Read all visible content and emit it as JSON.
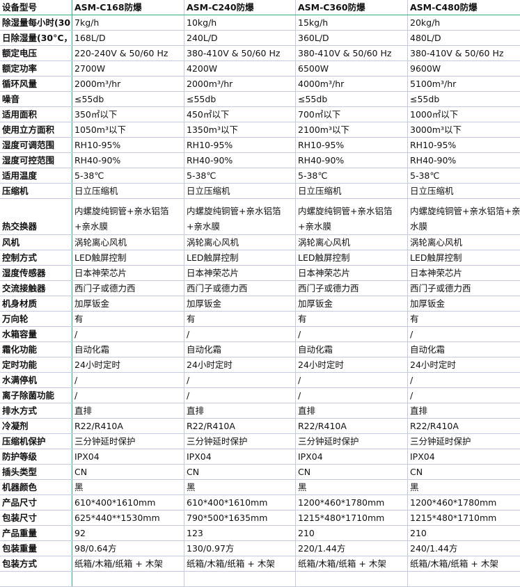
{
  "table": {
    "header": [
      "设备型号",
      "ASM-C168防爆",
      "ASM-C240防爆",
      "ASM-C360防爆",
      "ASM-C480防爆"
    ],
    "rows": [
      [
        "除湿量每小时(30",
        "7kg/h",
        "10kg/h",
        "15kg/h",
        "20kg/h"
      ],
      [
        "日除湿量(30°C，",
        "168L/D",
        "240L/D",
        "360L/D",
        "480L/D"
      ],
      [
        "额定电压",
        "220-240V & 50/60 Hz",
        "380-410V & 50/60 Hz",
        "380-410V & 50/60 Hz",
        "380-410V & 50/60 Hz"
      ],
      [
        "额定功率",
        "2700W",
        "4200W",
        "6500W",
        "9600W"
      ],
      [
        "循环风量",
        "2000m³/hr",
        "2000m³/hr",
        "4000m³/hr",
        "5100m³/hr"
      ],
      [
        "噪音",
        "≤55db",
        "≤55db",
        "≤55db",
        "≤55db"
      ],
      [
        "适用面积",
        "350㎡以下",
        "450㎡以下",
        "700㎡以下",
        "1000㎡以下"
      ],
      [
        "使用立方面积",
        "1050m³以下",
        "1350m³以下",
        "2100m³以下",
        "3000m³以下"
      ],
      [
        "湿度可调范围",
        "RH10-95%",
        "RH10-95%",
        "RH10-95%",
        "RH10-95%"
      ],
      [
        "湿度可控范围",
        "RH40-90%",
        "RH40-90%",
        "RH40-90%",
        "RH40-90%"
      ],
      [
        "适用温度",
        "5-38℃",
        "5-38℃",
        "5-38℃",
        "5-38℃"
      ],
      [
        "压缩机",
        "日立压缩机",
        "日立压缩机",
        "日立压缩机",
        "日立压缩机"
      ],
      [
        "热交换器",
        "内螺旋纯铜管+亲水铝箔+亲水膜",
        "内螺旋纯铜管+亲水铝箔+亲水膜",
        "内螺旋纯铜管+亲水铝箔+亲水膜",
        "内螺旋纯铜管+亲水铝箔+亲水膜"
      ],
      [
        "风机",
        "涡轮离心风机",
        "涡轮离心风机",
        "涡轮离心风机",
        "涡轮离心风机"
      ],
      [
        "控制方式",
        "LED触屏控制",
        "LED触屏控制",
        "LED触屏控制",
        "LED触屏控制"
      ],
      [
        "湿度传感器",
        "日本神荣芯片",
        "日本神荣芯片",
        "日本神荣芯片",
        "日本神荣芯片"
      ],
      [
        "交流接触器",
        "西门子或德力西",
        "西门子或德力西",
        "西门子或德力西",
        "西门子或德力西"
      ],
      [
        "机身材质",
        "加厚钣金",
        "加厚钣金",
        "加厚钣金",
        "加厚钣金"
      ],
      [
        "万向轮",
        "有",
        "有",
        "有",
        "有"
      ],
      [
        "水箱容量",
        "/",
        "/",
        "/",
        "/"
      ],
      [
        "霜化功能",
        "自动化霜",
        "自动化霜",
        "自动化霜",
        "自动化霜"
      ],
      [
        "定时功能",
        "24小时定时",
        "24小时定时",
        "24小时定时",
        "24小时定时"
      ],
      [
        "水满停机",
        "/",
        "/",
        "/",
        "/"
      ],
      [
        "离子除菌功能",
        "/",
        "/",
        "/",
        "/"
      ],
      [
        "排水方式",
        "直排",
        "直排",
        "直排",
        "直排"
      ],
      [
        "冷凝剂",
        "R22/R410A",
        "R22/R410A",
        "R22/R410A",
        "R22/R410A"
      ],
      [
        "压缩机保护",
        "三分钟延时保护",
        "三分钟延时保护",
        "三分钟延时保护",
        "三分钟延时保护"
      ],
      [
        "防护等级",
        "IPX04",
        "IPX04",
        "IPX04",
        "IPX04"
      ],
      [
        "插头类型",
        "CN",
        "CN",
        "CN",
        "CN"
      ],
      [
        "机器颜色",
        "黑",
        "黑",
        "黑",
        "黑"
      ],
      [
        "产品尺寸",
        "610*400*1610mm",
        "610*400*1610mm",
        "1200*460*1780mm",
        "1200*460*1780mm"
      ],
      [
        "包装尺寸",
        "625*440**1530mm",
        "790*500*1635mm",
        "1215*480*1710mm",
        "1215*480*1710mm"
      ],
      [
        "产品重量",
        "92",
        "123",
        "210",
        "210"
      ],
      [
        "包装重量",
        "98/0.64方",
        "130/0.97方",
        "220/1.44方",
        "240/1.44方"
      ],
      [
        "包装方式",
        "纸箱/木箱/纸箱 + 木架",
        "纸箱/木箱/纸箱 + 木架",
        "纸箱/木箱/纸箱 + 木架",
        "纸箱/木箱/纸箱 + 木架"
      ]
    ]
  }
}
